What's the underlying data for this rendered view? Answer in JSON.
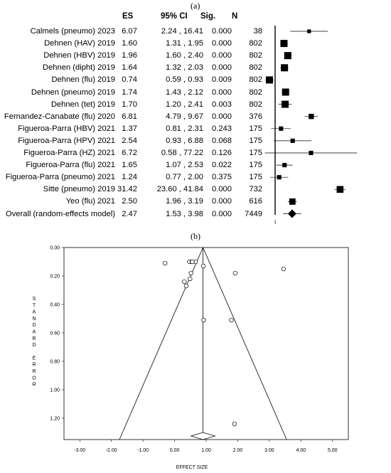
{
  "panel_a_label": "(a)",
  "panel_b_label": "(b)",
  "forest": {
    "headers": {
      "es": "ES",
      "ci": "95% CI",
      "sig": "Sig.",
      "n": "N"
    },
    "null_line_label": "1",
    "rows": [
      {
        "study": "Calmels (pneumo) 2023",
        "es": "6.07",
        "ci": "2.24 , 16.41",
        "sig": "0.000",
        "n": "38"
      },
      {
        "study": "Dehnen (HAV) 2019",
        "es": "1.60",
        "ci": "1.31 , 1.95",
        "sig": "0.000",
        "n": "802"
      },
      {
        "study": "Dehnen (HBV) 2019",
        "es": "1.96",
        "ci": "1.60 , 2.40",
        "sig": "0.000",
        "n": "802"
      },
      {
        "study": "Dehnen (dipht) 2019",
        "es": "1.64",
        "ci": "1.32 , 2.03",
        "sig": "0.000",
        "n": "802"
      },
      {
        "study": "Dehnen (flu) 2019",
        "es": "0.74",
        "ci": "0.59 , 0.93",
        "sig": "0.009",
        "n": "802"
      },
      {
        "study": "Dehnen (pneumo) 2019",
        "es": "1.74",
        "ci": "1.43 , 2.12",
        "sig": "0.000",
        "n": "802"
      },
      {
        "study": "Dehnen (tet) 2019",
        "es": "1.70",
        "ci": "1.20 , 2.41",
        "sig": "0.003",
        "n": "802"
      },
      {
        "study": "Fernandez-Canabate (flu) 2020",
        "es": "6.81",
        "ci": "4.79 , 9.67",
        "sig": "0.000",
        "n": "376"
      },
      {
        "study": "Figueroa-Parra (HBV) 2021",
        "es": "1.37",
        "ci": "0.81 , 2.31",
        "sig": "0.243",
        "n": "175"
      },
      {
        "study": "Figueroa-Parra (HPV) 2021",
        "es": "2.54",
        "ci": "0.93 , 6.88",
        "sig": "0.068",
        "n": "175"
      },
      {
        "study": "Figueroa-Parra (HZ) 2021",
        "es": "6.72",
        "ci": "0.58 , 77.22",
        "sig": "0.126",
        "n": "175"
      },
      {
        "study": "Figueroa-Parra (flu) 2021",
        "es": "1.65",
        "ci": "1.07 , 2.53",
        "sig": "0.022",
        "n": "175"
      },
      {
        "study": "Figueroa-Parra (pneumo) 2021",
        "es": "1.24",
        "ci": "0.77 , 2.00",
        "sig": "0.375",
        "n": "175"
      },
      {
        "study": "Sitte (pneumo) 2019",
        "es": "31.42",
        "ci": "23.60 , 41.84",
        "sig": "0.000",
        "n": "732"
      },
      {
        "study": "Yeo (flu) 2021",
        "es": "2.50",
        "ci": "1.96 , 3.19",
        "sig": "0.000",
        "n": "616"
      },
      {
        "study": "Overall (random-effects model)",
        "es": "2.47",
        "ci": "1.53 , 3.98",
        "sig": "0.000",
        "n": "7449"
      }
    ]
  },
  "chart_data": [
    {
      "type": "forest",
      "scale": "log",
      "reference_line": 1,
      "studies": [
        {
          "name": "Calmels (pneumo) 2023",
          "es": 6.07,
          "lo": 2.24,
          "hi": 16.41,
          "n": 38
        },
        {
          "name": "Dehnen (HAV) 2019",
          "es": 1.6,
          "lo": 1.31,
          "hi": 1.95,
          "n": 802
        },
        {
          "name": "Dehnen (HBV) 2019",
          "es": 1.96,
          "lo": 1.6,
          "hi": 2.4,
          "n": 802
        },
        {
          "name": "Dehnen (dipht) 2019",
          "es": 1.64,
          "lo": 1.32,
          "hi": 2.03,
          "n": 802
        },
        {
          "name": "Dehnen (flu) 2019",
          "es": 0.74,
          "lo": 0.59,
          "hi": 0.93,
          "n": 802
        },
        {
          "name": "Dehnen (pneumo) 2019",
          "es": 1.74,
          "lo": 1.43,
          "hi": 2.12,
          "n": 802
        },
        {
          "name": "Dehnen (tet) 2019",
          "es": 1.7,
          "lo": 1.2,
          "hi": 2.41,
          "n": 802
        },
        {
          "name": "Fernandez-Canabate (flu) 2020",
          "es": 6.81,
          "lo": 4.79,
          "hi": 9.67,
          "n": 376
        },
        {
          "name": "Figueroa-Parra (HBV) 2021",
          "es": 1.37,
          "lo": 0.81,
          "hi": 2.31,
          "n": 175
        },
        {
          "name": "Figueroa-Parra (HPV) 2021",
          "es": 2.54,
          "lo": 0.93,
          "hi": 6.88,
          "n": 175
        },
        {
          "name": "Figueroa-Parra (HZ) 2021",
          "es": 6.72,
          "lo": 0.58,
          "hi": 77.22,
          "n": 175
        },
        {
          "name": "Figueroa-Parra (flu) 2021",
          "es": 1.65,
          "lo": 1.07,
          "hi": 2.53,
          "n": 175
        },
        {
          "name": "Figueroa-Parra (pneumo) 2021",
          "es": 1.24,
          "lo": 0.77,
          "hi": 2.0,
          "n": 175
        },
        {
          "name": "Sitte (pneumo) 2019",
          "es": 31.42,
          "lo": 23.6,
          "hi": 41.84,
          "n": 732
        },
        {
          "name": "Yeo (flu) 2021",
          "es": 2.5,
          "lo": 1.96,
          "hi": 3.19,
          "n": 616
        }
      ],
      "overall": {
        "name": "Overall (random-effects model)",
        "es": 2.47,
        "lo": 1.53,
        "hi": 3.98,
        "n": 7449
      }
    },
    {
      "type": "scatter",
      "subtype": "funnel",
      "xlabel": "EFFECT SIZE",
      "ylabel": "STANDARD ERROR",
      "xlim": [
        -3.5,
        5.5
      ],
      "ylim": [
        1.35,
        0.0
      ],
      "xticks": [
        "-3.00",
        "-2.00",
        "-1.00",
        "0.00",
        "1.00",
        "2.00",
        "3.00",
        "4.00",
        "5.00"
      ],
      "yticks": [
        "0.00",
        "0.20",
        "0.40",
        "0.60",
        "0.80",
        "1.00",
        "1.20"
      ],
      "pooled_effect": 0.9,
      "points": [
        {
          "x": -0.3,
          "y": 0.11
        },
        {
          "x": 0.47,
          "y": 0.1
        },
        {
          "x": 0.55,
          "y": 0.1
        },
        {
          "x": 0.67,
          "y": 0.1
        },
        {
          "x": 0.56,
          "y": 0.1
        },
        {
          "x": 0.52,
          "y": 0.18
        },
        {
          "x": 0.49,
          "y": 0.22
        },
        {
          "x": 0.31,
          "y": 0.24
        },
        {
          "x": 0.37,
          "y": 0.27
        },
        {
          "x": 0.91,
          "y": 0.13
        },
        {
          "x": 1.92,
          "y": 0.18
        },
        {
          "x": 3.45,
          "y": 0.15
        },
        {
          "x": 0.92,
          "y": 0.51
        },
        {
          "x": 1.8,
          "y": 0.51
        },
        {
          "x": 1.9,
          "y": 1.24
        }
      ]
    }
  ]
}
